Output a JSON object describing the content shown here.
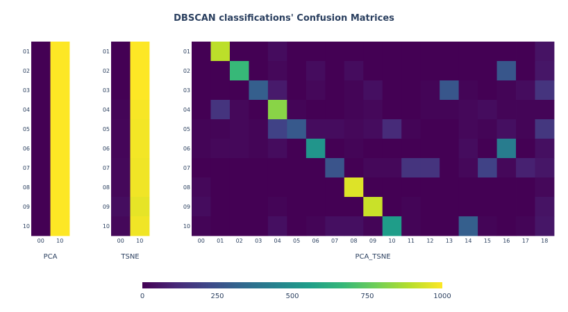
{
  "chart_data": {
    "type": "heatmap",
    "title": "DBSCAN classifications' Confusion Matrices",
    "zmin": 0,
    "zmax": 1000,
    "colorscale": "viridis",
    "colorscale_stops": [
      "#440154",
      "#482878",
      "#3e4989",
      "#31688e",
      "#26828e",
      "#1f9e89",
      "#35b779",
      "#6ece58",
      "#b5de2b",
      "#fde725"
    ],
    "colorbar": {
      "ticks": [
        0,
        250,
        500,
        750,
        1000
      ],
      "orientation": "horizontal"
    },
    "rows": [
      "01",
      "02",
      "03",
      "04",
      "05",
      "06",
      "07",
      "08",
      "09",
      "10"
    ],
    "panels": [
      {
        "xlabel": "PCA",
        "columns": [
          "00",
          "10"
        ],
        "z": [
          [
            0,
            1000
          ],
          [
            0,
            1000
          ],
          [
            0,
            1000
          ],
          [
            0,
            1000
          ],
          [
            0,
            1000
          ],
          [
            0,
            1000
          ],
          [
            0,
            1000
          ],
          [
            0,
            1000
          ],
          [
            0,
            1000
          ],
          [
            0,
            1000
          ]
        ]
      },
      {
        "xlabel": "TSNE",
        "columns": [
          "00",
          "10"
        ],
        "z": [
          [
            0,
            1000
          ],
          [
            0,
            1000
          ],
          [
            0,
            1000
          ],
          [
            10,
            990
          ],
          [
            15,
            985
          ],
          [
            15,
            985
          ],
          [
            20,
            980
          ],
          [
            20,
            980
          ],
          [
            35,
            965
          ],
          [
            20,
            980
          ]
        ]
      },
      {
        "xlabel": "PCA_TSNE",
        "columns": [
          "00",
          "01",
          "02",
          "03",
          "04",
          "05",
          "06",
          "07",
          "08",
          "09",
          "10",
          "11",
          "12",
          "13",
          "14",
          "15",
          "16",
          "17",
          "18"
        ],
        "z": [
          [
            0,
            900,
            0,
            0,
            30,
            0,
            0,
            0,
            0,
            0,
            0,
            0,
            0,
            0,
            0,
            0,
            0,
            0,
            50
          ],
          [
            0,
            0,
            670,
            0,
            20,
            0,
            30,
            0,
            30,
            0,
            0,
            0,
            0,
            0,
            0,
            0,
            270,
            0,
            60
          ],
          [
            0,
            0,
            0,
            300,
            70,
            0,
            20,
            0,
            10,
            40,
            0,
            0,
            10,
            270,
            10,
            0,
            10,
            30,
            150
          ],
          [
            0,
            150,
            20,
            0,
            820,
            10,
            0,
            0,
            10,
            20,
            0,
            0,
            10,
            10,
            20,
            30,
            10,
            10,
            10
          ],
          [
            10,
            10,
            20,
            10,
            200,
            280,
            30,
            30,
            20,
            30,
            120,
            10,
            0,
            0,
            20,
            10,
            40,
            10,
            160
          ],
          [
            10,
            20,
            20,
            10,
            30,
            0,
            520,
            0,
            10,
            0,
            0,
            0,
            0,
            0,
            30,
            0,
            420,
            0,
            40
          ],
          [
            0,
            0,
            0,
            0,
            0,
            0,
            0,
            260,
            0,
            20,
            20,
            150,
            150,
            0,
            20,
            200,
            20,
            90,
            60
          ],
          [
            20,
            0,
            0,
            0,
            0,
            0,
            0,
            0,
            950,
            0,
            0,
            0,
            0,
            0,
            0,
            0,
            0,
            0,
            20
          ],
          [
            30,
            0,
            0,
            0,
            10,
            0,
            0,
            0,
            0,
            920,
            0,
            10,
            0,
            0,
            0,
            0,
            0,
            0,
            50
          ],
          [
            10,
            0,
            0,
            0,
            40,
            0,
            10,
            40,
            40,
            10,
            550,
            10,
            0,
            0,
            300,
            10,
            0,
            10,
            60
          ]
        ]
      }
    ]
  }
}
